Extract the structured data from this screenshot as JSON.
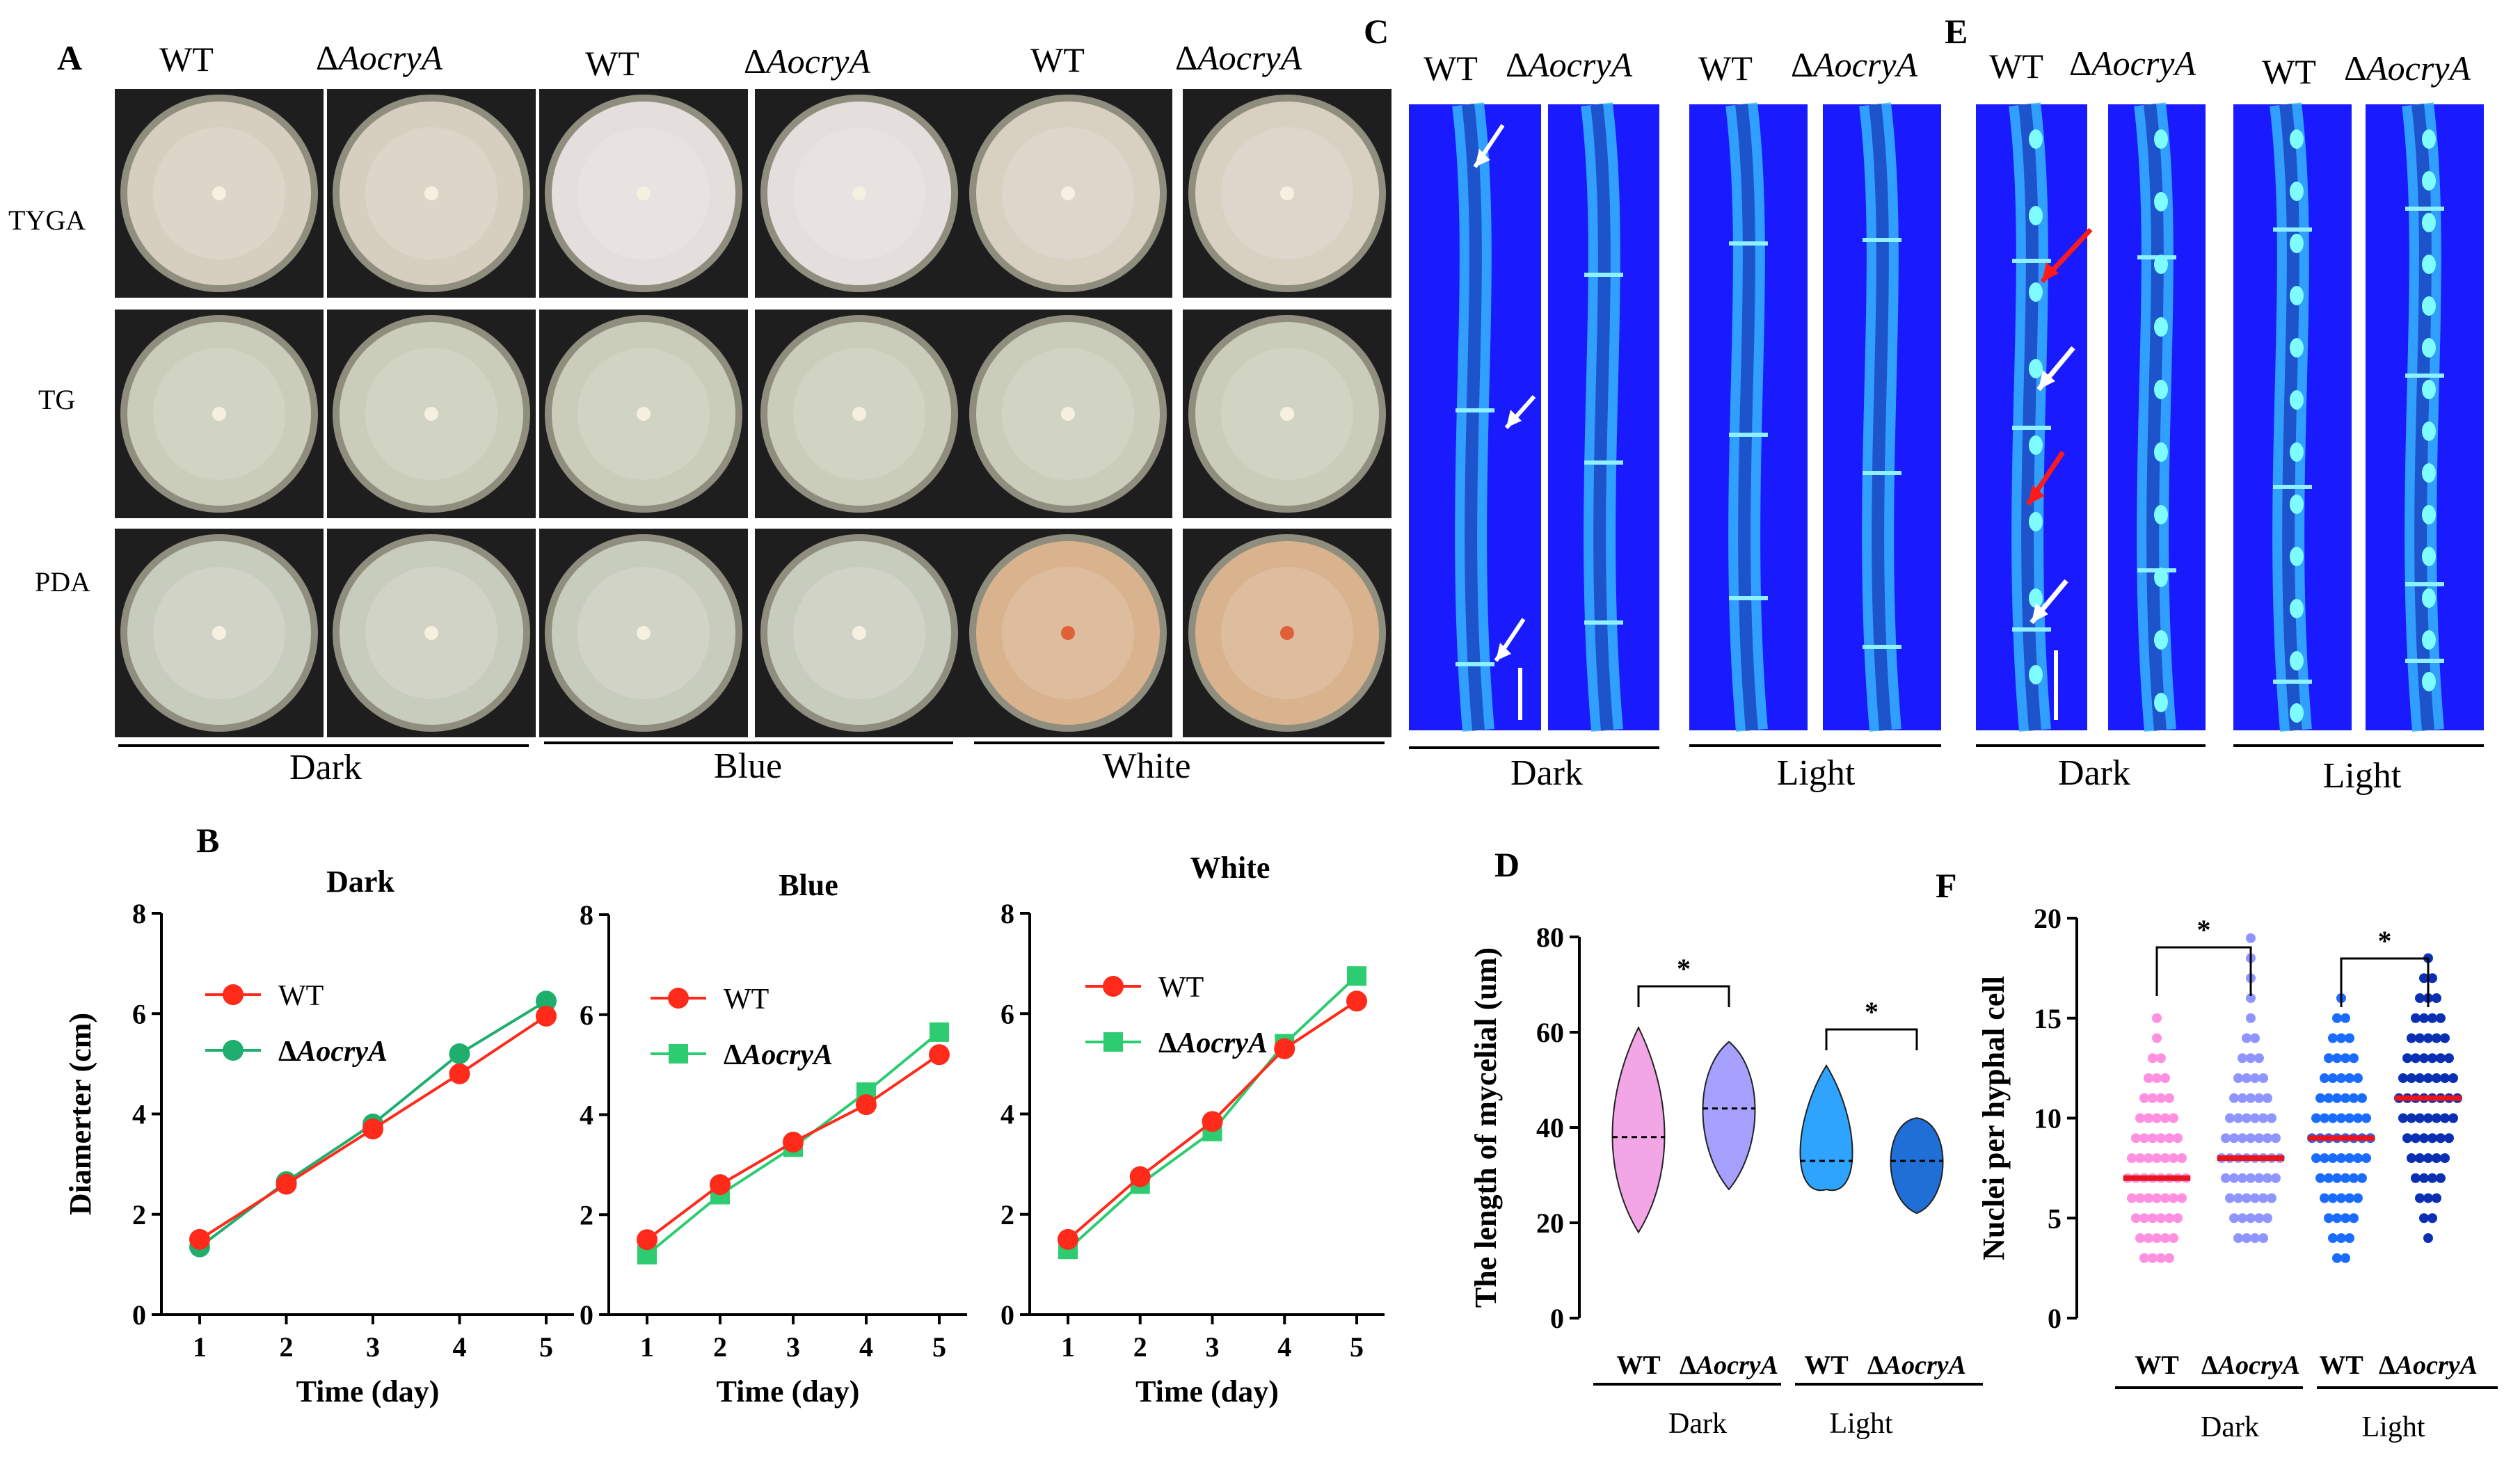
{
  "panels": {
    "A": "A",
    "B": "B",
    "C": "C",
    "D": "D",
    "E": "E",
    "F": "F"
  },
  "genotypes": {
    "wt": "WT",
    "delta": "Δ",
    "mutant": "AocryA"
  },
  "panel_a": {
    "rows": [
      "TYGA",
      "TG",
      "PDA"
    ],
    "groups": [
      "Dark",
      "Blue",
      "White"
    ],
    "colors": {
      "TYGA": "#d6cfc0",
      "TG": "#c9cdb9",
      "PDA": "#c8ccbc",
      "blue_tyga": "#e4dfdc",
      "white_tyga": "#d8d1c2",
      "white_pda": "#d9b28e"
    }
  },
  "panel_c": {
    "groups": [
      "Dark",
      "Light"
    ],
    "bg": "#1a1aff",
    "hypha": "#36b7ff"
  },
  "panel_e": {
    "groups": [
      "Dark",
      "Light"
    ]
  },
  "panel_b": {
    "xlabel": "Time (day)",
    "ylabel": "Diamerter (cm)",
    "colors": {
      "wt": "#ff2a1a",
      "mut": "#1fae6e",
      "mut2": "#2ecc71"
    }
  },
  "chart_data": [
    {
      "type": "line",
      "title": "Dark",
      "x": [
        1,
        2,
        3,
        4,
        5
      ],
      "ylim": [
        0,
        8
      ],
      "yticks": [
        0,
        2,
        4,
        6,
        8
      ],
      "xlabel": "Time (day)",
      "ylabel": "Diamerter (cm)",
      "series": [
        {
          "name": "WT",
          "values": [
            1.5,
            2.6,
            3.7,
            4.8,
            5.95
          ]
        },
        {
          "name": "ΔAocryA",
          "values": [
            1.35,
            2.65,
            3.8,
            5.2,
            6.25
          ]
        }
      ]
    },
    {
      "type": "line",
      "title": "Blue",
      "x": [
        1,
        2,
        3,
        4,
        5
      ],
      "ylim": [
        0,
        8
      ],
      "yticks": [
        0,
        2,
        4,
        6,
        8
      ],
      "xlabel": "Time (day)",
      "ylabel": "",
      "series": [
        {
          "name": "WT",
          "values": [
            1.5,
            2.6,
            3.45,
            4.2,
            5.2
          ]
        },
        {
          "name": "ΔAocryA",
          "values": [
            1.2,
            2.4,
            3.35,
            4.45,
            5.65
          ]
        }
      ]
    },
    {
      "type": "line",
      "title": "White",
      "x": [
        1,
        2,
        3,
        4,
        5
      ],
      "ylim": [
        0,
        8
      ],
      "yticks": [
        0,
        2,
        4,
        6,
        8
      ],
      "xlabel": "Time (day)",
      "ylabel": "",
      "series": [
        {
          "name": "WT",
          "values": [
            1.5,
            2.75,
            3.85,
            5.3,
            6.25
          ]
        },
        {
          "name": "ΔAocryA",
          "values": [
            1.3,
            2.6,
            3.65,
            5.4,
            6.75
          ]
        }
      ]
    },
    {
      "type": "violin",
      "title": "",
      "ylabel": "The length of mycelial (um)",
      "ylim": [
        0,
        80
      ],
      "yticks": [
        0,
        20,
        40,
        60,
        80
      ],
      "categories": [
        "WT",
        "ΔAocryA",
        "WT",
        "ΔAocryA"
      ],
      "groups": [
        "Dark",
        "Light"
      ],
      "medians": [
        38,
        44,
        33,
        33
      ],
      "ranges": [
        [
          18,
          61
        ],
        [
          27,
          58
        ],
        [
          27,
          53
        ],
        [
          22,
          42
        ]
      ],
      "colors": [
        "#f3a6e6",
        "#a6a0ff",
        "#2fa4ff",
        "#1f6fd6"
      ],
      "significance": [
        {
          "pair": [
            0,
            1
          ],
          "label": "*"
        },
        {
          "pair": [
            2,
            3
          ],
          "label": "*"
        }
      ]
    },
    {
      "type": "scatter",
      "title": "",
      "ylabel": "Nuclei per hyphal cell",
      "ylim": [
        0,
        20
      ],
      "yticks": [
        0,
        5,
        10,
        15,
        20
      ],
      "categories": [
        "WT",
        "ΔAocryA",
        "WT",
        "ΔAocryA"
      ],
      "groups": [
        "Dark",
        "Light"
      ],
      "medians": [
        7,
        8,
        9,
        11
      ],
      "ranges": [
        [
          3,
          15
        ],
        [
          4,
          19
        ],
        [
          3,
          16
        ],
        [
          4,
          18
        ]
      ],
      "colors": [
        "#ff8fe0",
        "#8f95ff",
        "#1a6cff",
        "#0a2fb3"
      ],
      "significance": [
        {
          "pair": [
            0,
            1
          ],
          "label": "*"
        },
        {
          "pair": [
            2,
            3
          ],
          "label": "*"
        }
      ]
    }
  ]
}
